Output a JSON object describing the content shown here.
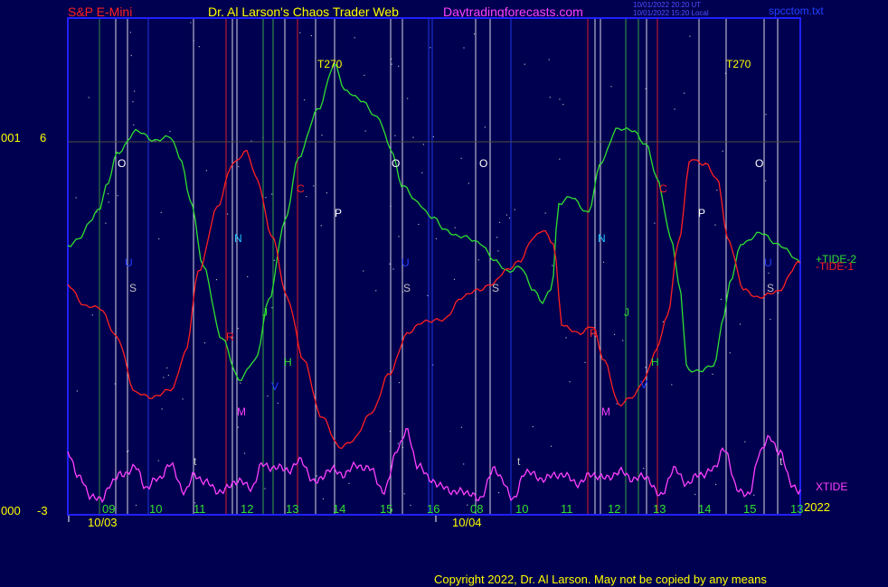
{
  "header": {
    "symbol": "S&P E-Mini",
    "title": "Dr. Al Larson's Chaos Trader Web",
    "site": "Daytradingforecasts.com",
    "stamp_line1": "10/01/2022 20:20 UT",
    "stamp_line2": "10/01/2022 15:20 Local",
    "file": "spcctom.txt"
  },
  "footer": {
    "copyright": "Copyright 2022, Dr. Al Larson. May not be copied by any means"
  },
  "colors": {
    "background": "#000050",
    "plot_border": "#2020ff",
    "tide1": "#ff2020",
    "tide2": "#30e030",
    "xtide": "#ff40ff",
    "yellow": "#ffff00",
    "white": "#ffffff"
  },
  "chart_data": {
    "type": "line",
    "y_labels": [
      {
        "left": "001",
        "value": "6"
      },
      {
        "left": "000",
        "value": "-3"
      }
    ],
    "ylim": [
      -3,
      6
    ],
    "x_hour_ticks": [
      "09",
      "10",
      "11",
      "12",
      "13",
      "14",
      "15",
      "16",
      "08",
      "10",
      "11",
      "12",
      "13",
      "14",
      "15",
      "13"
    ],
    "x_date_labels": [
      "10/03",
      "10/04"
    ],
    "year_label": "2022",
    "series": [
      {
        "name": "+TIDE-2",
        "color": "#30e030"
      },
      {
        "name": "-TIDE-1",
        "color": "#ff2020"
      },
      {
        "name": "XTIDE",
        "color": "#ff40ff"
      }
    ],
    "annotations": [
      {
        "text": "T270",
        "color": "#ffff00"
      },
      {
        "text": "T270",
        "color": "#ffff00"
      },
      {
        "text": "O",
        "color": "#ffffff"
      },
      {
        "text": "O",
        "color": "#ffffff"
      },
      {
        "text": "O",
        "color": "#ffffff"
      },
      {
        "text": "O",
        "color": "#ffffff"
      },
      {
        "text": "N",
        "color": "#20c8ff"
      },
      {
        "text": "N",
        "color": "#20c8ff"
      },
      {
        "text": "C",
        "color": "#ff2020"
      },
      {
        "text": "C",
        "color": "#ff2020"
      },
      {
        "text": "P",
        "color": "#ffffff"
      },
      {
        "text": "P",
        "color": "#ffffff"
      },
      {
        "text": "S",
        "color": "#c0c0c0"
      },
      {
        "text": "S",
        "color": "#c0c0c0"
      },
      {
        "text": "S",
        "color": "#c0c0c0"
      },
      {
        "text": "S",
        "color": "#c0c0c0"
      },
      {
        "text": "U",
        "color": "#2040ff"
      },
      {
        "text": "U",
        "color": "#2040ff"
      },
      {
        "text": "U",
        "color": "#2040ff"
      },
      {
        "text": "J",
        "color": "#30e030"
      },
      {
        "text": "J",
        "color": "#30e030"
      },
      {
        "text": "H",
        "color": "#30e030"
      },
      {
        "text": "H",
        "color": "#30e030"
      },
      {
        "text": "R",
        "color": "#ff2020"
      },
      {
        "text": "R",
        "color": "#ff2020"
      },
      {
        "text": "M",
        "color": "#ff40ff"
      },
      {
        "text": "M",
        "color": "#ff40ff"
      },
      {
        "text": "V",
        "color": "#2040ff"
      },
      {
        "text": "V",
        "color": "#2040ff"
      },
      {
        "text": "t",
        "color": "#c0c0c0"
      },
      {
        "text": "t",
        "color": "#c0c0c0"
      },
      {
        "text": "t",
        "color": "#c0c0c0"
      }
    ]
  }
}
